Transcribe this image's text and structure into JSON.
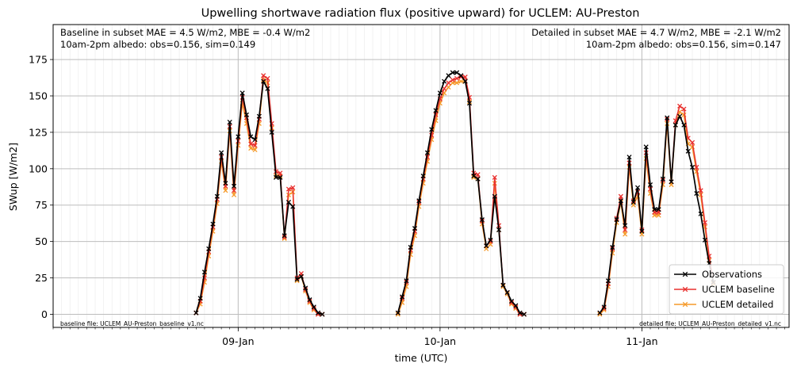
{
  "chart_data": {
    "type": "line",
    "title": "Upwelling shortwave radiation flux (positive upward) for UCLEM: AU-Preston",
    "xlabel": "time (UTC)",
    "ylabel": "SWup [W/m2]",
    "x_range": [
      "2010-01-08T02:00",
      "2010-01-11T17:30"
    ],
    "ylim": [
      -9,
      199
    ],
    "x_ticks": [
      {
        "t": "2010-01-09T00:00",
        "label": "09-Jan"
      },
      {
        "t": "2010-01-10T00:00",
        "label": "10-Jan"
      },
      {
        "t": "2010-01-11T00:00",
        "label": "11-Jan"
      }
    ],
    "y_ticks": [
      0,
      25,
      50,
      75,
      100,
      125,
      150,
      175
    ],
    "grid": true,
    "legend": {
      "placement": "lower-right"
    },
    "annotations": {
      "top_left": [
        "Baseline in subset MAE = 4.5 W/m2, MBE = -0.4 W/m2",
        "10am-2pm albedo: obs=0.156, sim=0.149"
      ],
      "top_right": [
        "Detailed in subset MAE = 4.7 W/m2, MBE = -2.1 W/m2",
        "10am-2pm albedo: obs=0.156, sim=0.147"
      ],
      "bottom_left": "baseline file: UCLEM_AU-Preston_baseline_v1.nc",
      "bottom_right": "detailed file: UCLEM_AU-Preston_detailed_v1.nc"
    },
    "series": [
      {
        "name": "Observations",
        "color": "#000000",
        "marker": "x",
        "segments": [
          {
            "start": "2010-01-08T19:00",
            "step_minutes": 30,
            "values": [
              1,
              11,
              29,
              45,
              62,
              81,
              111,
              90,
              132,
              88,
              122,
              152,
              137,
              122,
              120,
              136,
              160,
              155,
              125,
              94,
              94,
              54,
              77,
              74,
              24,
              26,
              18,
              10,
              5,
              1,
              0
            ]
          },
          {
            "start": "2010-01-09T19:00",
            "step_minutes": 30,
            "values": [
              1,
              12,
              23,
              46,
              59,
              78,
              95,
              111,
              127,
              140,
              152,
              160,
              164,
              166,
              166,
              164,
              160,
              145,
              95,
              93,
              65,
              47,
              51,
              81,
              58,
              20,
              15,
              9,
              6,
              1,
              0
            ]
          },
          {
            "start": "2010-01-10T19:00",
            "step_minutes": 30,
            "values": [
              1,
              5,
              23,
              46,
              65,
              78,
              61,
              108,
              77,
              87,
              57,
              115,
              89,
              72,
              72,
              93,
              135,
              91,
              130,
              136,
              130,
              112,
              101,
              83,
              69,
              51,
              35,
              22
            ]
          }
        ]
      },
      {
        "name": "UCLEM baseline",
        "color": "#e8302e",
        "marker": "x",
        "segments": [
          {
            "start": "2010-01-08T19:00",
            "step_minutes": 30,
            "values": [
              1,
              9,
              25,
              43,
              60,
              79,
              108,
              88,
              129,
              85,
              119,
              149,
              135,
              117,
              116,
              134,
              164,
              162,
              131,
              98,
              97,
              53,
              86,
              87,
              25,
              28,
              17,
              9,
              4,
              0,
              0
            ]
          },
          {
            "start": "2010-01-09T19:00",
            "step_minutes": 30,
            "values": [
              1,
              11,
              22,
              44,
              57,
              77,
              93,
              108,
              123,
              137,
              148,
              155,
              159,
              161,
              162,
              163,
              163,
              149,
              97,
              96,
              64,
              47,
              50,
              94,
              61,
              20,
              15,
              8,
              5,
              0,
              0
            ]
          },
          {
            "start": "2010-01-10T19:00",
            "step_minutes": 30,
            "values": [
              1,
              4,
              21,
              45,
              66,
              81,
              58,
              104,
              78,
              84,
              58,
              111,
              86,
              70,
              70,
              92,
              134,
              91,
              133,
              143,
              141,
              121,
              118,
              101,
              85,
              63,
              40,
              22
            ]
          }
        ]
      },
      {
        "name": "UCLEM detailed",
        "color": "#f59a2a",
        "marker": "x",
        "segments": [
          {
            "start": "2010-01-08T19:00",
            "step_minutes": 30,
            "values": [
              1,
              7,
              22,
              40,
              57,
              76,
              105,
              85,
              126,
              82,
              116,
              145,
              131,
              114,
              113,
              131,
              161,
              159,
              128,
              95,
              95,
              52,
              82,
              84,
              23,
              26,
              16,
              8,
              3,
              0,
              0
            ]
          },
          {
            "start": "2010-01-09T19:00",
            "step_minutes": 30,
            "values": [
              0,
              8,
              19,
              41,
              54,
              74,
              90,
              105,
              120,
              133,
              145,
              152,
              156,
              159,
              159,
              160,
              160,
              146,
              94,
              93,
              62,
              45,
              48,
              90,
              58,
              19,
              14,
              7,
              4,
              0,
              0
            ]
          },
          {
            "start": "2010-01-10T19:00",
            "step_minutes": 30,
            "values": [
              0,
              3,
              19,
              42,
              63,
              77,
              55,
              101,
              75,
              81,
              55,
              107,
              83,
              68,
              68,
              89,
              131,
              89,
              130,
              139,
              137,
              117,
              115,
              98,
              82,
              60,
              37,
              21
            ]
          }
        ]
      }
    ]
  }
}
